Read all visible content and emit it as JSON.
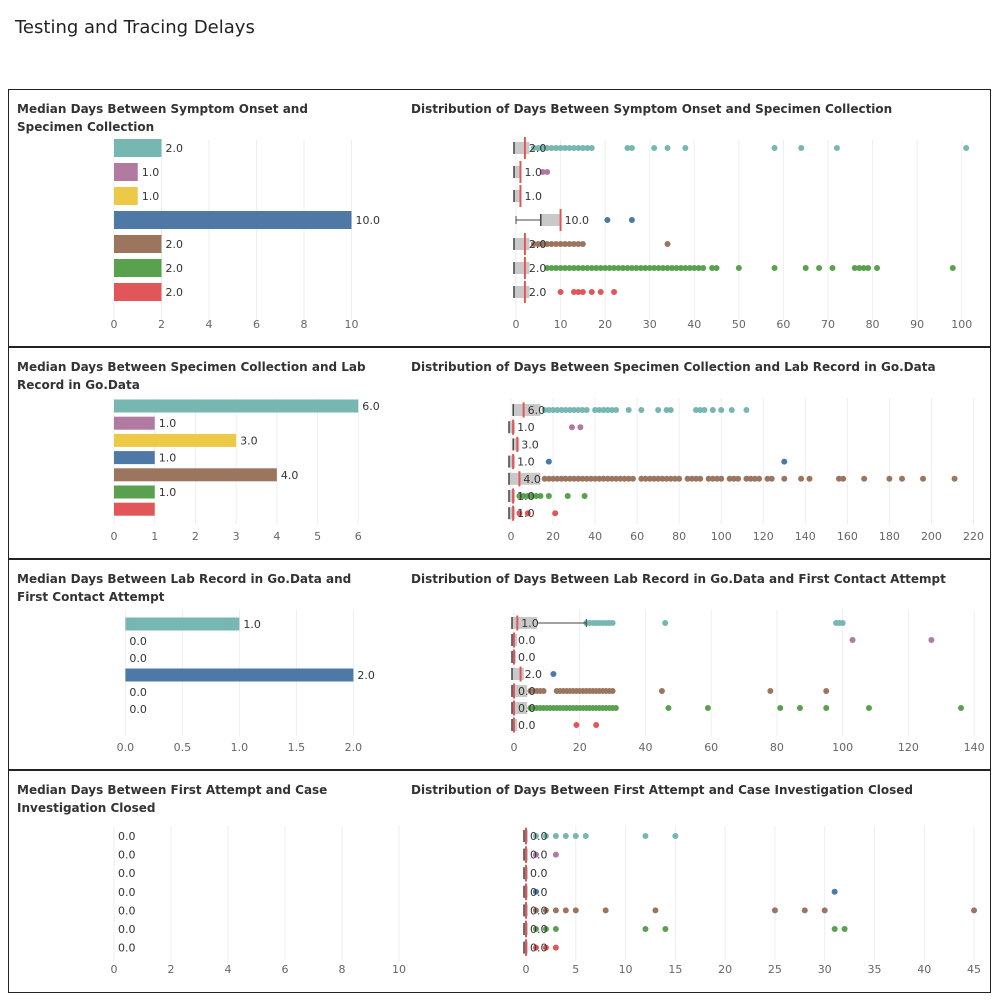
{
  "page": {
    "title": "Testing and Tracing Delays"
  },
  "colors": {
    "categories": [
      "#76b7b2",
      "#b07aa1",
      "#edc948",
      "#4e79a7",
      "#9c755f",
      "#59a14f",
      "#e15759"
    ],
    "median_line": "#e15759",
    "box_fill": "#c9c9c9",
    "box_line": "#444444",
    "grid": "#eeeeee",
    "axis_text": "#666666"
  },
  "chart_data": [
    {
      "id": "onset-bar",
      "type": "bar",
      "orientation": "horizontal",
      "title": "Median Days Between Symptom Onset and Specimen Collection",
      "categories": [
        "",
        "",
        "",
        "",
        "",
        "",
        ""
      ],
      "values": [
        2.0,
        1.0,
        1.0,
        10.0,
        2.0,
        2.0,
        2.0
      ],
      "value_labels": [
        "2.0",
        "1.0",
        "1.0",
        "10.0",
        "2.0",
        "2.0",
        "2.0"
      ],
      "xlim": [
        0,
        12
      ],
      "ticks": [
        0,
        2,
        4,
        6,
        8,
        10
      ]
    },
    {
      "id": "onset-dist",
      "type": "scatter",
      "title": "Distribution of Days Between Symptom Onset and Specimen Collection",
      "xlim": [
        0,
        105
      ],
      "ticks": [
        0,
        10,
        20,
        30,
        40,
        50,
        60,
        70,
        80,
        90,
        100
      ],
      "median_labels": [
        "2.0",
        "1.0",
        "1.0",
        "10.0",
        "2.0",
        "2.0",
        "2.0"
      ],
      "rows": [
        {
          "median": 2.0,
          "box": [
            0,
            3
          ],
          "whisker": 3,
          "points": [
            4,
            5,
            6,
            7,
            8,
            9,
            10,
            11,
            12,
            13,
            14,
            15,
            16,
            17,
            25,
            26,
            31,
            34,
            38,
            58,
            64,
            72,
            101
          ]
        },
        {
          "median": 1.0,
          "box": [
            0,
            1
          ],
          "whisker": 1,
          "points": [
            6,
            7
          ]
        },
        {
          "median": 1.0,
          "box": [
            0,
            1
          ],
          "whisker": 1,
          "points": []
        },
        {
          "median": 10.0,
          "box": [
            6,
            10
          ],
          "whisker": 0,
          "points": [
            20.5,
            26
          ]
        },
        {
          "median": 2.0,
          "box": [
            0,
            3
          ],
          "whisker": 3,
          "points": [
            4,
            5,
            6,
            7,
            8,
            9,
            10,
            11,
            12,
            13,
            14,
            15,
            34
          ]
        },
        {
          "median": 2.0,
          "box": [
            0,
            3
          ],
          "whisker": 3,
          "points": [
            7,
            8,
            9,
            10,
            11,
            12,
            13,
            14,
            15,
            16,
            17,
            18,
            19,
            20,
            21,
            22,
            23,
            24,
            25,
            26,
            27,
            28,
            29,
            30,
            31,
            32,
            33,
            34,
            35,
            36,
            37,
            38,
            39,
            40,
            41,
            42,
            44,
            45,
            50,
            58,
            65,
            68,
            71,
            76,
            77,
            78,
            79,
            81,
            98
          ]
        },
        {
          "median": 2.0,
          "box": [
            0,
            3
          ],
          "whisker": 3,
          "points": [
            10,
            13,
            14,
            15,
            17,
            19,
            22
          ]
        }
      ]
    },
    {
      "id": "lab-bar",
      "type": "bar",
      "orientation": "horizontal",
      "title": "Median Days Between Specimen Collection and Lab Record in Go.Data",
      "categories": [
        "",
        "",
        "",
        "",
        "",
        "",
        ""
      ],
      "values": [
        6.0,
        1.0,
        3.0,
        1.0,
        4.0,
        1.0,
        1.0
      ],
      "value_labels": [
        "6.0",
        "1.0",
        "3.0",
        "1.0",
        "4.0",
        "1.0",
        ""
      ],
      "xlim": [
        0,
        7
      ],
      "ticks": [
        0,
        1,
        2,
        3,
        4,
        5,
        6
      ]
    },
    {
      "id": "lab-dist",
      "type": "scatter",
      "title": "Distribution of Days Between Specimen Collection and Lab Record in Go.Data",
      "xlim": [
        0,
        225
      ],
      "ticks": [
        0,
        20,
        40,
        60,
        80,
        100,
        120,
        140,
        160,
        180,
        200,
        220
      ],
      "median_labels": [
        "6.0",
        "1.0",
        "3.0",
        "1.0",
        "4.0",
        "1.0",
        "1.0"
      ],
      "rows": [
        {
          "median": 6.0,
          "box": [
            2,
            14
          ],
          "whisker": 2,
          "points": [
            16,
            18,
            20,
            22,
            24,
            26,
            28,
            30,
            32,
            34,
            36,
            40,
            42,
            44,
            46,
            48,
            50,
            56,
            62,
            70,
            74,
            76,
            88,
            90,
            92,
            96,
            100,
            105,
            112
          ]
        },
        {
          "median": 1.0,
          "box": [
            0,
            2
          ],
          "whisker": 0,
          "points": [
            29,
            33
          ]
        },
        {
          "median": 3.0,
          "box": [
            2,
            4
          ],
          "whisker": 2,
          "points": []
        },
        {
          "median": 1.0,
          "box": [
            0,
            2
          ],
          "whisker": 0,
          "points": [
            18,
            130
          ]
        },
        {
          "median": 4.0,
          "box": [
            0,
            14
          ],
          "whisker": 0,
          "points": [
            16,
            18,
            20,
            22,
            24,
            26,
            28,
            30,
            32,
            34,
            36,
            38,
            40,
            42,
            44,
            46,
            48,
            50,
            52,
            54,
            56,
            58,
            62,
            64,
            66,
            68,
            70,
            72,
            74,
            76,
            78,
            80,
            84,
            86,
            88,
            90,
            94,
            96,
            98,
            100,
            104,
            106,
            108,
            112,
            114,
            116,
            118,
            122,
            124,
            130,
            138,
            142,
            156,
            158,
            168,
            180,
            186,
            196,
            211
          ]
        },
        {
          "median": 1.0,
          "box": [
            0,
            2
          ],
          "whisker": 0,
          "points": [
            4,
            6,
            8,
            10,
            12,
            14,
            18,
            27,
            35
          ]
        },
        {
          "median": 1.0,
          "box": [
            0,
            2
          ],
          "whisker": 0,
          "points": [
            4,
            8,
            21
          ]
        }
      ]
    },
    {
      "id": "contact-bar",
      "type": "bar",
      "orientation": "horizontal",
      "title": "Median Days Between Lab Record in Go.Data and First Contact Attempt",
      "categories": [
        "",
        "",
        "",
        "",
        "",
        "",
        ""
      ],
      "values": [
        1.0,
        0.0,
        0.0,
        2.0,
        0.0,
        0.0,
        0.0
      ],
      "value_labels": [
        "1.0",
        "0.0",
        "0.0",
        "2.0",
        "0.0",
        "0.0",
        ""
      ],
      "xlim": [
        -0.1,
        2.4
      ],
      "ticks": [
        0.0,
        0.5,
        1.0,
        1.5,
        2.0
      ],
      "tick_labels": [
        "0.0",
        "0.5",
        "1.0",
        "1.5",
        "2.0"
      ]
    },
    {
      "id": "contact-dist",
      "type": "scatter",
      "title": "Distribution of  Days Between Lab Record in Go.Data and First Contact Attempt",
      "xlim": [
        0,
        143
      ],
      "ticks": [
        0,
        20,
        40,
        60,
        80,
        100,
        120,
        140
      ],
      "median_labels": [
        "1.0",
        "0.0",
        "0.0",
        "2.0",
        "0.0",
        "0.0",
        "0.0"
      ],
      "rows": [
        {
          "median": 1.0,
          "box": [
            0,
            7
          ],
          "whisker": 22,
          "points": [
            22,
            23,
            24,
            25,
            26,
            27,
            28,
            29,
            30,
            46,
            98,
            99,
            100
          ]
        },
        {
          "median": 0.0,
          "box": [
            0,
            1
          ],
          "whisker": 0,
          "points": [
            103,
            127
          ]
        },
        {
          "median": 0.0,
          "box": [
            0,
            0
          ],
          "whisker": 0,
          "points": []
        },
        {
          "median": 2.0,
          "box": [
            0,
            3
          ],
          "whisker": 0,
          "points": [
            12
          ]
        },
        {
          "median": 0.0,
          "box": [
            0,
            4
          ],
          "whisker": 0,
          "points": [
            5,
            6,
            7,
            8,
            9,
            13,
            14,
            15,
            16,
            17,
            18,
            19,
            20,
            21,
            22,
            23,
            24,
            25,
            26,
            27,
            28,
            29,
            30,
            45,
            78,
            95
          ]
        },
        {
          "median": 0.0,
          "box": [
            0,
            4
          ],
          "whisker": 0,
          "points": [
            5,
            6,
            7,
            8,
            9,
            10,
            11,
            12,
            13,
            14,
            15,
            16,
            17,
            18,
            19,
            20,
            21,
            22,
            23,
            24,
            25,
            26,
            27,
            28,
            29,
            30,
            31,
            47,
            59,
            81,
            87,
            95,
            108,
            136
          ]
        },
        {
          "median": 0.0,
          "box": [
            0,
            1
          ],
          "whisker": 0,
          "points": [
            19,
            25
          ]
        }
      ]
    },
    {
      "id": "close-bar",
      "type": "bar",
      "orientation": "horizontal",
      "title": "Median Days Between First Attempt and Case Investigation Closed",
      "categories": [
        "",
        "",
        "",
        "",
        "",
        "",
        ""
      ],
      "values": [
        0.0,
        0.0,
        0.0,
        0.0,
        0.0,
        0.0,
        0.0
      ],
      "value_labels": [
        "0.0",
        "0.0",
        "0.0",
        "0.0",
        "0.0",
        "0.0",
        "0.0"
      ],
      "xlim": [
        0,
        10
      ],
      "ticks": [
        0,
        2,
        4,
        6,
        8,
        10
      ]
    },
    {
      "id": "close-dist",
      "type": "scatter",
      "title": "Distribution of  Days Between First Attempt and Case Investigation Closed",
      "xlim": [
        0,
        46
      ],
      "ticks": [
        0,
        5,
        10,
        15,
        20,
        25,
        30,
        35,
        40,
        45
      ],
      "median_labels": [
        "0.0",
        "0.0",
        "0.0",
        "0.0",
        "0.0",
        "0.0",
        "0.0"
      ],
      "rows": [
        {
          "median": 0.0,
          "box": [
            0,
            0
          ],
          "whisker": 0,
          "points": [
            1,
            2,
            3,
            4,
            5,
            6,
            12,
            15
          ]
        },
        {
          "median": 0.0,
          "box": [
            0,
            0
          ],
          "whisker": 0,
          "points": [
            1,
            3
          ]
        },
        {
          "median": 0.0,
          "box": [
            0,
            0
          ],
          "whisker": 0,
          "points": []
        },
        {
          "median": 0.0,
          "box": [
            0,
            0
          ],
          "whisker": 0,
          "points": [
            1,
            31
          ]
        },
        {
          "median": 0.0,
          "box": [
            0,
            0
          ],
          "whisker": 0,
          "points": [
            1,
            2,
            3,
            4,
            5,
            8,
            13,
            25,
            28,
            30,
            45
          ]
        },
        {
          "median": 0.0,
          "box": [
            0,
            0
          ],
          "whisker": 0,
          "points": [
            1,
            2,
            3,
            12,
            14,
            31,
            32
          ]
        },
        {
          "median": 0.0,
          "box": [
            0,
            0
          ],
          "whisker": 0,
          "points": [
            1,
            2,
            3
          ]
        }
      ]
    }
  ]
}
